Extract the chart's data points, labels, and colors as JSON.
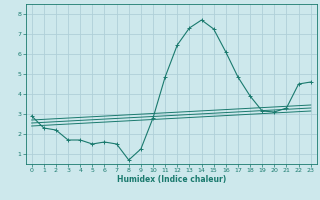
{
  "xlabel": "Humidex (Indice chaleur)",
  "background_color": "#cde8ec",
  "grid_color": "#b0d0d8",
  "line_color": "#1a7a6e",
  "xlim": [
    -0.5,
    23.5
  ],
  "ylim": [
    0.5,
    8.5
  ],
  "yticks": [
    1,
    2,
    3,
    4,
    5,
    6,
    7,
    8
  ],
  "xticks": [
    0,
    1,
    2,
    3,
    4,
    5,
    6,
    7,
    8,
    9,
    10,
    11,
    12,
    13,
    14,
    15,
    16,
    17,
    18,
    19,
    20,
    21,
    22,
    23
  ],
  "curve1_x": [
    0,
    1,
    2,
    3,
    4,
    5,
    6,
    7,
    8,
    9,
    10,
    11,
    12,
    13,
    14,
    15,
    16,
    17,
    18,
    19,
    20,
    21,
    22,
    23
  ],
  "curve1_y": [
    2.9,
    2.3,
    2.2,
    1.7,
    1.7,
    1.5,
    1.6,
    1.5,
    0.7,
    1.25,
    2.8,
    4.85,
    6.45,
    7.3,
    7.7,
    7.25,
    6.1,
    4.85,
    3.9,
    3.15,
    3.1,
    3.3,
    4.5,
    4.6
  ],
  "curve2_x": [
    0,
    23
  ],
  "curve2_y": [
    2.4,
    3.15
  ],
  "curve3_x": [
    0,
    23
  ],
  "curve3_y": [
    2.55,
    3.3
  ],
  "curve4_x": [
    0,
    23
  ],
  "curve4_y": [
    2.7,
    3.45
  ]
}
